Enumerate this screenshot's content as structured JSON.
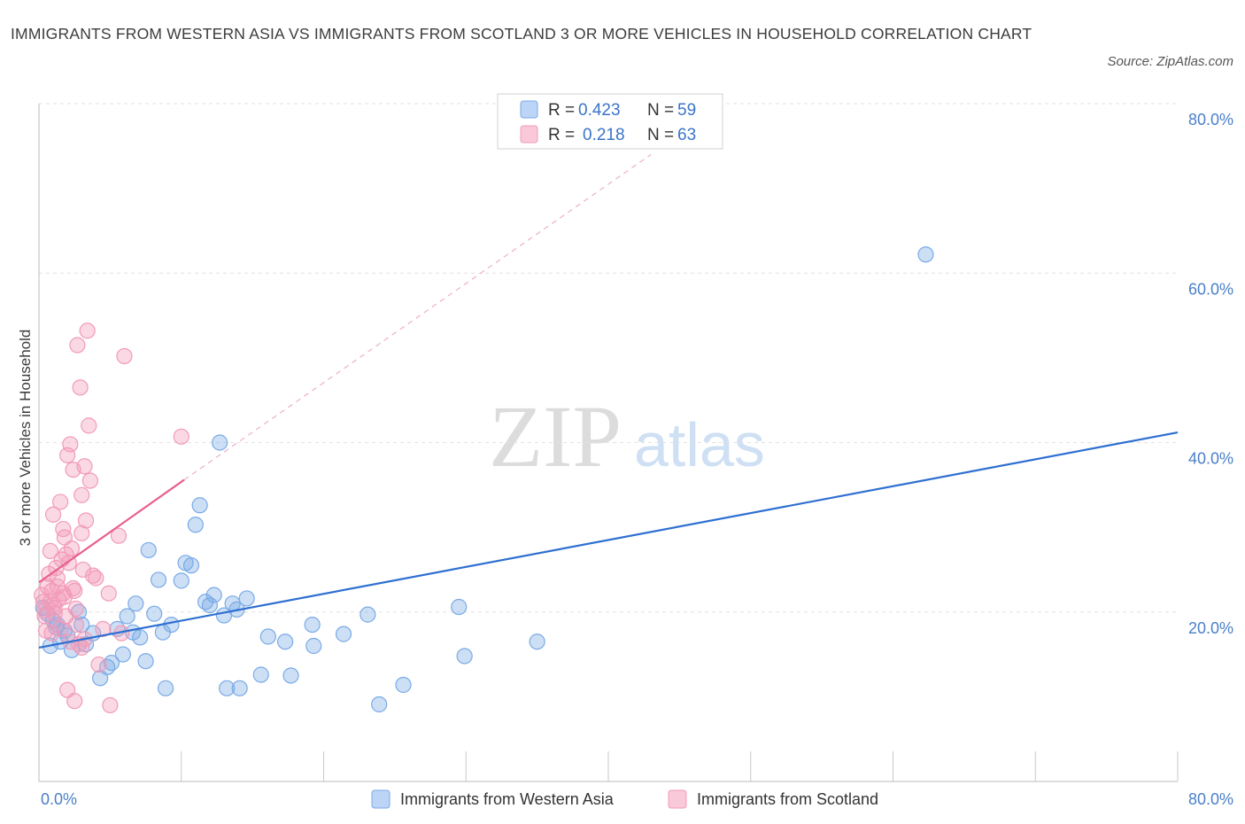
{
  "title": "IMMIGRANTS FROM WESTERN ASIA VS IMMIGRANTS FROM SCOTLAND 3 OR MORE VEHICLES IN HOUSEHOLD CORRELATION CHART",
  "source": "Source: ZipAtlas.com",
  "watermark": {
    "zip": "ZIP",
    "atlas": "atlas"
  },
  "chart_data": {
    "type": "scatter",
    "ylabel": "3 or more Vehicles in Household",
    "xlabel": "",
    "xlim": [
      0,
      80
    ],
    "ylim": [
      0,
      80
    ],
    "x_tick_labels": {
      "left": "0.0%",
      "right": "80.0%"
    },
    "y_ticks": [
      {
        "value": 20,
        "label": "20.0%"
      },
      {
        "value": 40,
        "label": "40.0%"
      },
      {
        "value": 60,
        "label": "60.0%"
      },
      {
        "value": 80,
        "label": "80.0%"
      }
    ],
    "legend": [
      {
        "r_label": "R =",
        "r": "0.423",
        "n_label": "N =",
        "n": "59"
      },
      {
        "r_label": "R =",
        "r": "0.218",
        "n_label": "N =",
        "n": "63"
      }
    ],
    "series": [
      {
        "name": "Immigrants from Western Asia",
        "color": "#7aaae6",
        "line_color": "#2e6fd1",
        "trend": {
          "x0": 0,
          "y0": 15.8,
          "x1": 80,
          "y1": 41.2,
          "dashed_ext": null
        },
        "points": [
          [
            0.3,
            20.5
          ],
          [
            0.6,
            19.8
          ],
          [
            0.8,
            16.0
          ],
          [
            1.0,
            19.0
          ],
          [
            1.3,
            18.5
          ],
          [
            1.5,
            16.5
          ],
          [
            1.8,
            17.8
          ],
          [
            2.0,
            17.2
          ],
          [
            2.3,
            15.5
          ],
          [
            2.8,
            20.0
          ],
          [
            3.0,
            18.5
          ],
          [
            3.3,
            16.2
          ],
          [
            3.8,
            17.5
          ],
          [
            4.3,
            12.2
          ],
          [
            4.8,
            13.5
          ],
          [
            5.1,
            14.0
          ],
          [
            5.5,
            18.0
          ],
          [
            5.9,
            15.0
          ],
          [
            6.2,
            19.5
          ],
          [
            6.6,
            17.6
          ],
          [
            6.8,
            21.0
          ],
          [
            7.1,
            17.0
          ],
          [
            7.5,
            14.2
          ],
          [
            7.7,
            27.3
          ],
          [
            8.1,
            19.8
          ],
          [
            8.4,
            23.8
          ],
          [
            8.7,
            17.6
          ],
          [
            8.9,
            11.0
          ],
          [
            9.3,
            18.5
          ],
          [
            10.0,
            23.7
          ],
          [
            10.3,
            25.8
          ],
          [
            10.7,
            25.5
          ],
          [
            11.0,
            30.3
          ],
          [
            11.3,
            32.6
          ],
          [
            11.7,
            21.2
          ],
          [
            12.0,
            20.8
          ],
          [
            12.3,
            22.0
          ],
          [
            12.7,
            40.0
          ],
          [
            13.0,
            19.6
          ],
          [
            13.2,
            11.0
          ],
          [
            13.6,
            21.0
          ],
          [
            13.9,
            20.3
          ],
          [
            14.1,
            11.0
          ],
          [
            14.6,
            21.6
          ],
          [
            15.6,
            12.6
          ],
          [
            16.1,
            17.1
          ],
          [
            17.3,
            16.5
          ],
          [
            17.7,
            12.5
          ],
          [
            19.3,
            16.0
          ],
          [
            19.2,
            18.5
          ],
          [
            21.4,
            17.4
          ],
          [
            23.1,
            19.7
          ],
          [
            23.9,
            9.1
          ],
          [
            25.6,
            11.4
          ],
          [
            29.5,
            20.6
          ],
          [
            29.9,
            14.8
          ],
          [
            35.0,
            16.5
          ],
          [
            62.3,
            62.2
          ],
          [
            1.2,
            18.2
          ]
        ]
      },
      {
        "name": "Immigrants from Scotland",
        "color": "#f29ab9",
        "line_color": "#e8608e",
        "trend": {
          "x0": 0,
          "y0": 23.5,
          "x1": 10.2,
          "y1": 35.6,
          "dash_to": {
            "x": 43,
            "y": 74
          }
        },
        "points": [
          [
            0.2,
            22.0
          ],
          [
            0.3,
            21.2
          ],
          [
            0.4,
            19.5
          ],
          [
            0.5,
            17.8
          ],
          [
            0.6,
            23.0
          ],
          [
            0.7,
            24.5
          ],
          [
            0.8,
            27.2
          ],
          [
            0.9,
            22.5
          ],
          [
            1.0,
            31.5
          ],
          [
            1.1,
            20.5
          ],
          [
            1.2,
            25.2
          ],
          [
            1.3,
            24.0
          ],
          [
            1.4,
            21.5
          ],
          [
            1.5,
            33.0
          ],
          [
            1.6,
            26.2
          ],
          [
            1.7,
            29.8
          ],
          [
            1.8,
            21.8
          ],
          [
            1.9,
            19.5
          ],
          [
            2.0,
            38.5
          ],
          [
            2.1,
            25.8
          ],
          [
            2.2,
            39.8
          ],
          [
            2.3,
            27.5
          ],
          [
            2.4,
            36.8
          ],
          [
            2.5,
            22.5
          ],
          [
            2.6,
            18.5
          ],
          [
            2.7,
            51.5
          ],
          [
            2.8,
            16.2
          ],
          [
            2.9,
            46.5
          ],
          [
            3.0,
            33.8
          ],
          [
            3.1,
            25.0
          ],
          [
            3.2,
            37.2
          ],
          [
            3.3,
            30.8
          ],
          [
            3.4,
            53.2
          ],
          [
            3.5,
            42.0
          ],
          [
            3.6,
            35.5
          ],
          [
            4.0,
            24.0
          ],
          [
            4.2,
            13.8
          ],
          [
            4.5,
            18.0
          ],
          [
            4.9,
            22.2
          ],
          [
            5.0,
            9.0
          ],
          [
            5.6,
            29.0
          ],
          [
            5.8,
            17.5
          ],
          [
            6.0,
            50.2
          ],
          [
            10.0,
            40.7
          ],
          [
            2.0,
            10.8
          ],
          [
            2.5,
            9.5
          ],
          [
            1.9,
            26.8
          ],
          [
            1.0,
            20.8
          ],
          [
            0.8,
            21.2
          ],
          [
            1.3,
            23.0
          ],
          [
            3.0,
            15.8
          ],
          [
            3.2,
            16.8
          ],
          [
            0.4,
            20.2
          ],
          [
            0.9,
            17.5
          ],
          [
            1.1,
            19.8
          ],
          [
            1.7,
            22.2
          ],
          [
            2.2,
            16.5
          ],
          [
            2.4,
            22.8
          ],
          [
            3.0,
            29.3
          ],
          [
            2.6,
            20.4
          ],
          [
            1.8,
            28.8
          ],
          [
            3.8,
            24.3
          ],
          [
            1.5,
            18.0
          ]
        ]
      }
    ]
  }
}
